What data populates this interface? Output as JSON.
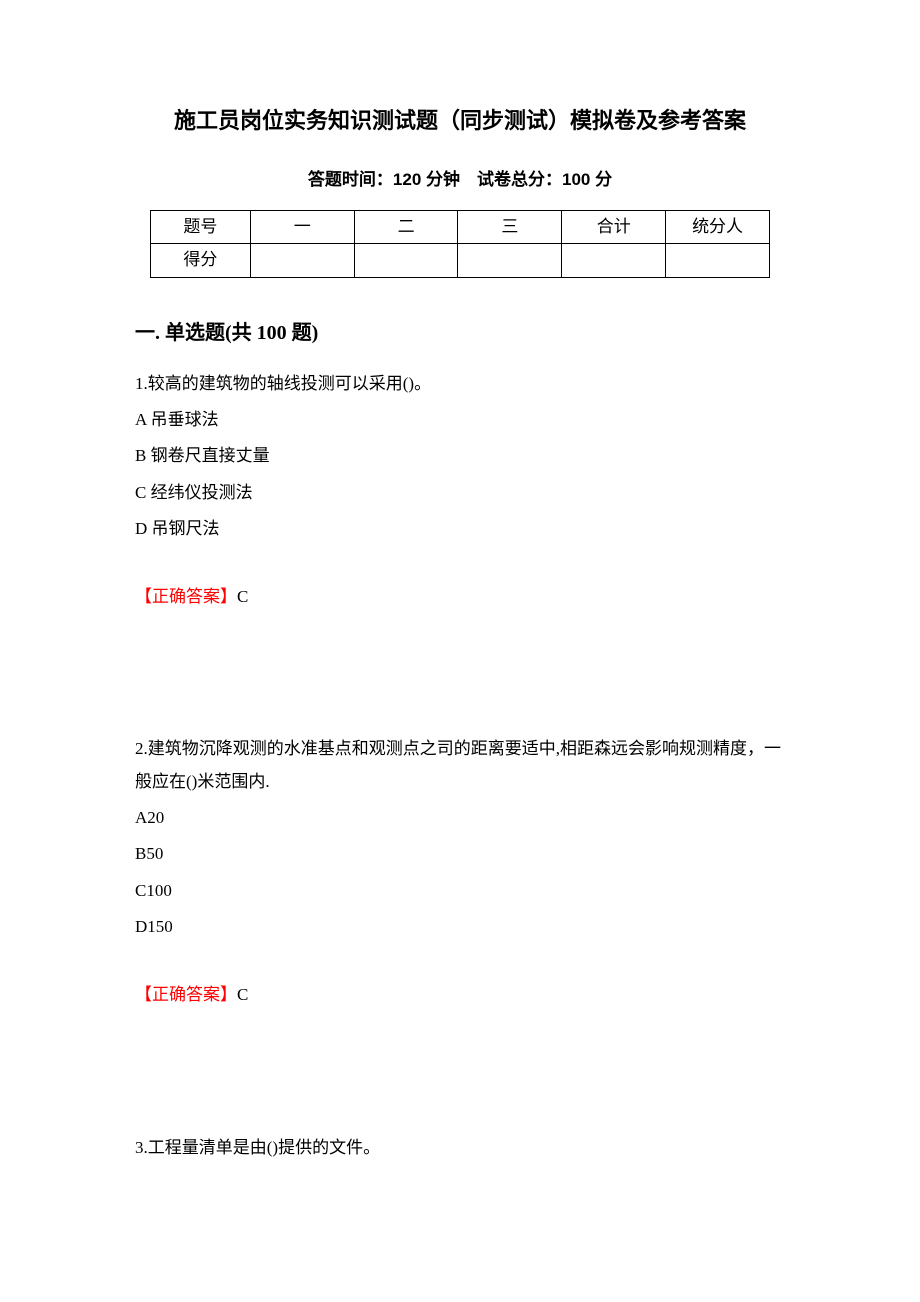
{
  "title": "施工员岗位实务知识测试题（同步测试）模拟卷及参考答案",
  "exam_info": "答题时间：120 分钟 试卷总分：100 分",
  "table": {
    "header_row": [
      "题号",
      "一",
      "二",
      "三",
      "合计",
      "统分人"
    ],
    "score_row_label": "得分",
    "score_row": [
      "",
      "",
      "",
      "",
      ""
    ],
    "border_color": "#000000"
  },
  "section": {
    "heading": "一. 单选题(共 100 题)"
  },
  "questions": [
    {
      "num": "1.",
      "text": "较高的建筑物的轴线投测可以采用()。",
      "options": [
        "A 吊垂球法",
        "B 钢卷尺直接丈量",
        "C 经纬仪投测法",
        "D 吊钢尺法"
      ],
      "answer_label": "【正确答案】",
      "answer": "C"
    },
    {
      "num": "2.",
      "text": "建筑物沉降观测的水准基点和观测点之司的距离要适中,相距森远会影响规测精度，一般应在()米范围内.",
      "options": [
        "A20",
        "B50",
        "C100",
        "D150"
      ],
      "answer_label": "【正确答案】",
      "answer": "C"
    }
  ],
  "trailing_question": {
    "num": "3.",
    "text": "工程量清单是由()提供的文件。"
  },
  "colors": {
    "text": "#000000",
    "answer_label": "#ff0000",
    "background": "#ffffff"
  },
  "typography": {
    "title_fontsize": 22,
    "body_fontsize": 17,
    "section_fontsize": 20
  }
}
